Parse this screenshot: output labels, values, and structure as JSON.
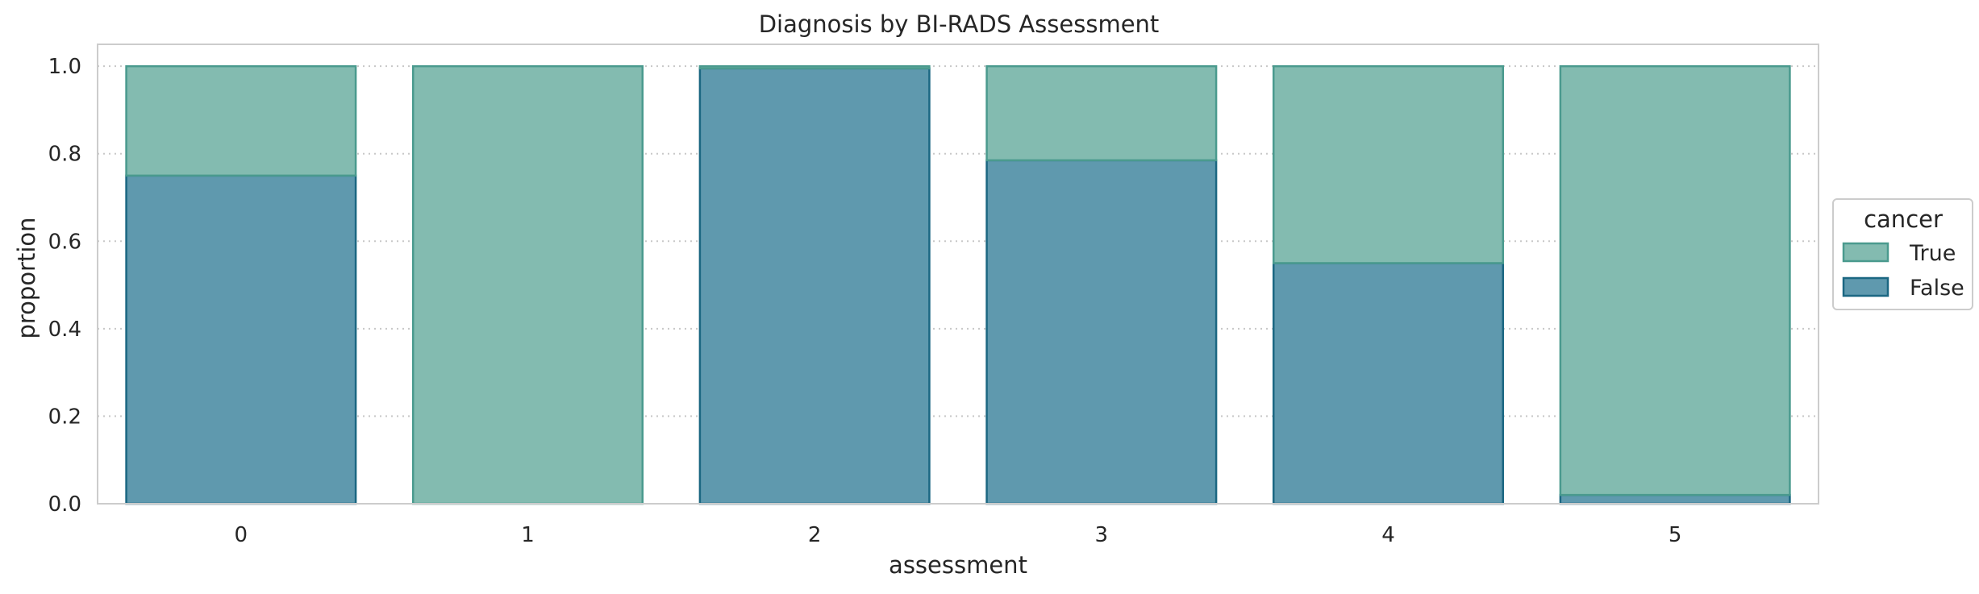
{
  "chart_data": {
    "type": "bar",
    "stacked": true,
    "title": "Diagnosis by BI-RADS Assessment",
    "xlabel": "assessment",
    "ylabel": "proportion",
    "categories": [
      "0",
      "1",
      "2",
      "3",
      "4",
      "5"
    ],
    "ylim": [
      0,
      1.05
    ],
    "yticks": [
      "0.0",
      "0.2",
      "0.4",
      "0.6",
      "0.8",
      "1.0"
    ],
    "grid": true,
    "legend": {
      "title": "cancer",
      "placement": "center-right outside"
    },
    "series": [
      {
        "name": "False",
        "values": [
          0.75,
          0.0,
          0.995,
          0.785,
          0.55,
          0.02
        ],
        "fill": "#5f99ae",
        "edge": "#1b6782"
      },
      {
        "name": "True",
        "values": [
          0.25,
          1.0,
          0.005,
          0.215,
          0.45,
          0.98
        ],
        "fill": "#83bbb0",
        "edge": "#4a9a8e"
      }
    ],
    "legend_order": [
      "True",
      "False"
    ]
  }
}
